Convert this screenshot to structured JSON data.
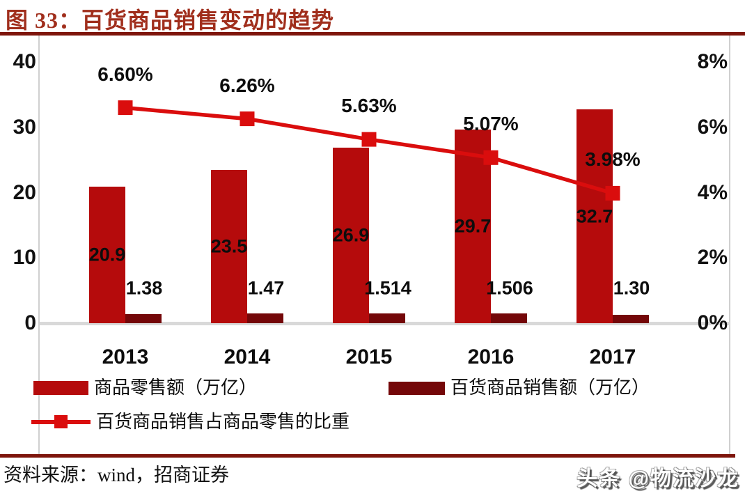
{
  "title": "图 33：百货商品销售变动的趋势",
  "source": "资料来源：wind，招商证券",
  "watermark": "头条 @物流沙龙",
  "colors": {
    "title_red": "#A02E1C",
    "rule_red": "#7E150C",
    "bar_retail": "#B50B0C",
    "bar_dept": "#740709",
    "line_ratio": "#DA0D0D",
    "axis_line_gray": "#D9D9D9",
    "border_gray": "#CFCFCF",
    "text_black": "#111111"
  },
  "chart_data": {
    "type": "bar",
    "subtype": "grouped-bars-with-line-on-secondary-axis",
    "title": "百货商品销售变动的趋势",
    "categories": [
      "2013",
      "2014",
      "2015",
      "2016",
      "2017"
    ],
    "series": [
      {
        "name": "商品零售额（万亿）",
        "type": "bar",
        "axis": "left",
        "values": [
          20.9,
          23.5,
          26.9,
          29.7,
          32.7
        ],
        "labels": [
          "20.9",
          "23.5",
          "26.9",
          "29.7",
          "32.7"
        ]
      },
      {
        "name": "百货商品销售额（万亿）",
        "type": "bar",
        "axis": "left",
        "values": [
          1.38,
          1.47,
          1.514,
          1.506,
          1.3
        ],
        "labels": [
          "1.38",
          "1.47",
          "1.514",
          "1.506",
          "1.30"
        ]
      },
      {
        "name": "百货商品销售占商品零售的比重",
        "type": "line",
        "axis": "right",
        "values": [
          6.6,
          6.26,
          5.63,
          5.07,
          3.98
        ],
        "labels": [
          "6.60%",
          "6.26%",
          "5.63%",
          "5.07%",
          "3.98%"
        ]
      }
    ],
    "left_axis": {
      "min": 0,
      "max": 40,
      "ticks": [
        "40",
        "30",
        "20",
        "10",
        "0"
      ]
    },
    "right_axis": {
      "min": "0%",
      "max": "8%",
      "ticks": [
        "8%",
        "6%",
        "4%",
        "2%",
        "0%"
      ]
    },
    "legend_position": "bottom",
    "grid": false
  }
}
